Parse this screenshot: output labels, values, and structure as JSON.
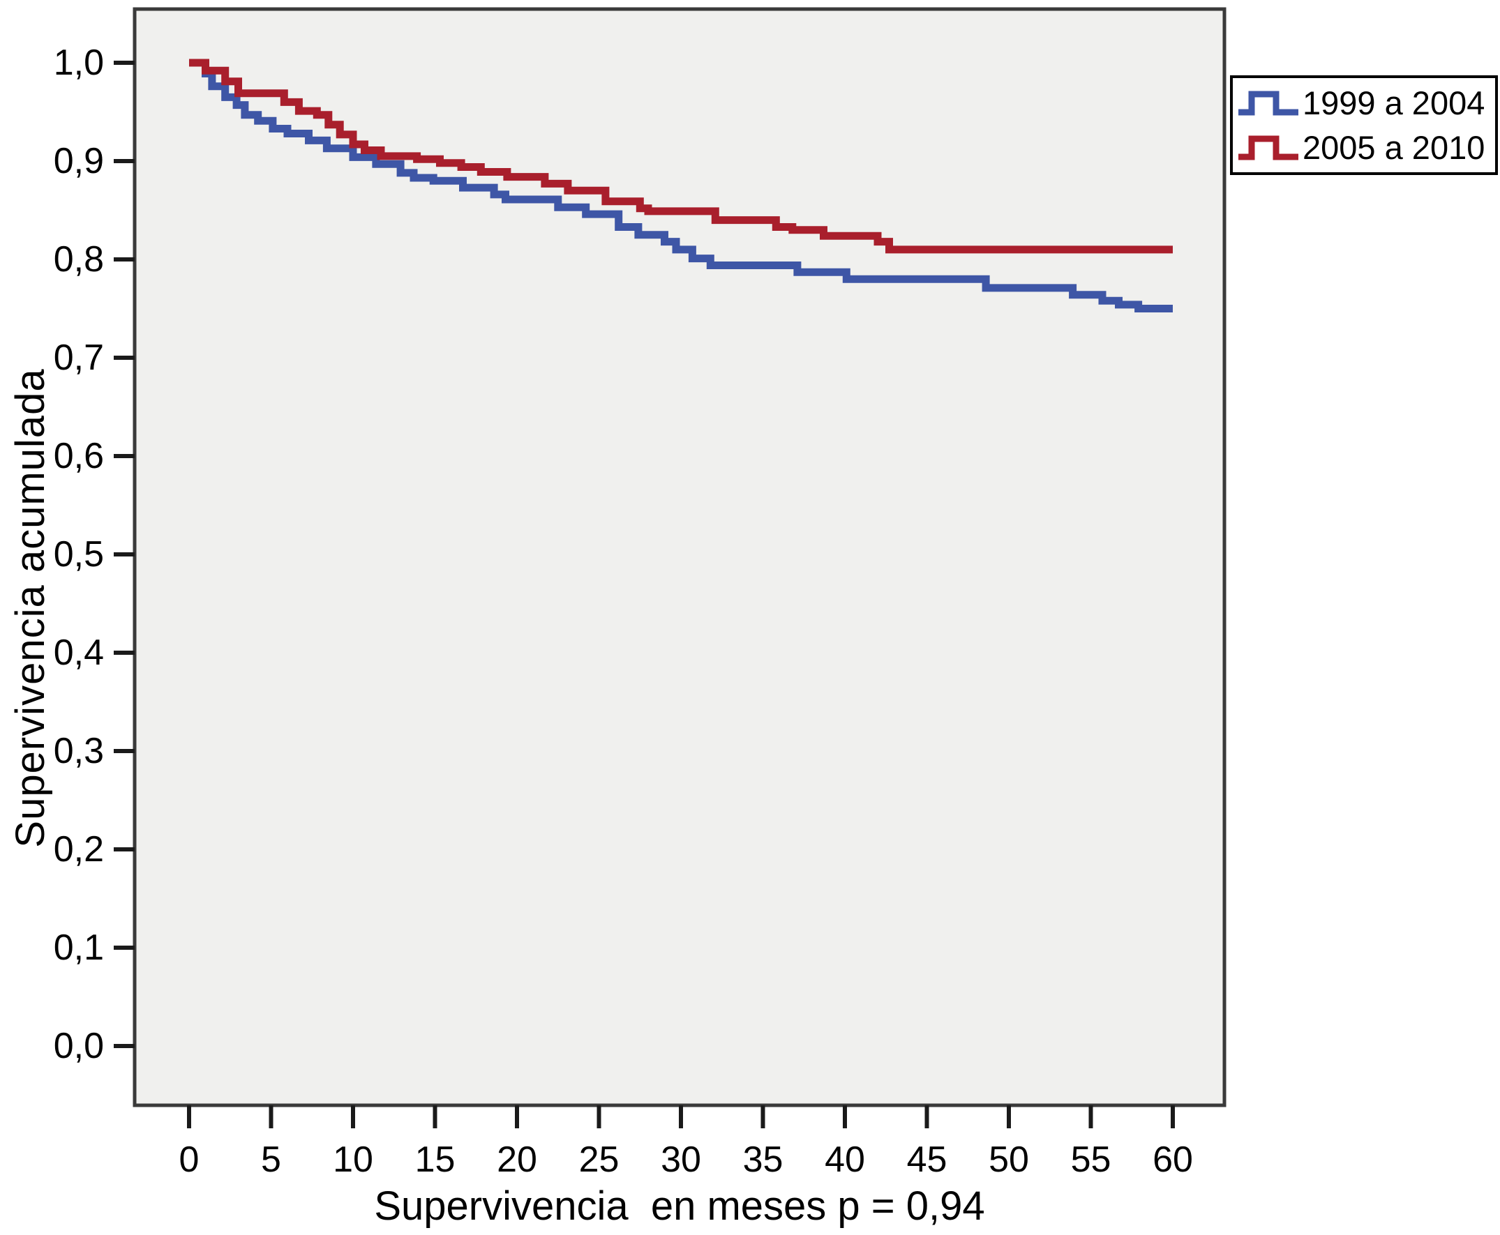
{
  "chart_data": {
    "type": "line",
    "subtype": "kaplan-meier-step-survival",
    "title": "",
    "xlabel": "Supervivencia  en meses p = 0,94",
    "ylabel": "Supervivencia acumulada",
    "p_value_label": "p = 0,94",
    "xlim": [
      0,
      60
    ],
    "ylim": [
      0.0,
      1.0
    ],
    "grid": false,
    "plot_bg": "#f0f0ee",
    "frame_color": "#3a3a3a",
    "tick_color": "#1a1a1a",
    "legend_position": "top-right-outside",
    "x_tick_values": [
      0,
      5,
      10,
      15,
      20,
      25,
      30,
      35,
      40,
      45,
      50,
      55,
      60
    ],
    "x_tick_labels": [
      "0",
      "5",
      "10",
      "15",
      "20",
      "25",
      "30",
      "35",
      "40",
      "45",
      "50",
      "55",
      "60"
    ],
    "y_tick_values": [
      1.0,
      0.9,
      0.8,
      0.7,
      0.6,
      0.5,
      0.4,
      0.3,
      0.2,
      0.1,
      0.0
    ],
    "y_tick_labels": [
      "1,0",
      "0,9",
      "0,8",
      "0,7",
      "0,6",
      "0,5",
      "0,4",
      "0,3",
      "0,2",
      "0,1",
      "0,0"
    ],
    "series": [
      {
        "name": "1999 a 2004",
        "color": "#3e56a6",
        "points": [
          [
            0,
            1.0
          ],
          [
            1.0,
            0.989
          ],
          [
            1.4,
            0.976
          ],
          [
            2.2,
            0.965
          ],
          [
            2.9,
            0.957
          ],
          [
            3.4,
            0.947
          ],
          [
            4.2,
            0.941
          ],
          [
            5.1,
            0.933
          ],
          [
            6.0,
            0.928
          ],
          [
            7.3,
            0.921
          ],
          [
            8.4,
            0.913
          ],
          [
            10.0,
            0.904
          ],
          [
            11.4,
            0.897
          ],
          [
            12.9,
            0.888
          ],
          [
            13.7,
            0.883
          ],
          [
            14.9,
            0.88
          ],
          [
            16.7,
            0.873
          ],
          [
            18.6,
            0.866
          ],
          [
            19.3,
            0.861
          ],
          [
            22.5,
            0.853
          ],
          [
            24.2,
            0.846
          ],
          [
            26.2,
            0.833
          ],
          [
            27.4,
            0.825
          ],
          [
            29.0,
            0.818
          ],
          [
            29.7,
            0.81
          ],
          [
            30.7,
            0.801
          ],
          [
            31.8,
            0.794
          ],
          [
            37.1,
            0.787
          ],
          [
            40.1,
            0.78
          ],
          [
            48.6,
            0.771
          ],
          [
            53.9,
            0.764
          ],
          [
            55.7,
            0.758
          ],
          [
            56.7,
            0.754
          ],
          [
            57.9,
            0.75
          ],
          [
            60,
            0.75
          ]
        ]
      },
      {
        "name": "2005 a 2010",
        "color": "#a91f2c",
        "points": [
          [
            0,
            1.0
          ],
          [
            1.0,
            0.992
          ],
          [
            2.2,
            0.981
          ],
          [
            3.0,
            0.969
          ],
          [
            5.8,
            0.96
          ],
          [
            6.7,
            0.951
          ],
          [
            7.8,
            0.947
          ],
          [
            8.5,
            0.937
          ],
          [
            9.2,
            0.927
          ],
          [
            10.0,
            0.917
          ],
          [
            10.7,
            0.911
          ],
          [
            11.7,
            0.905
          ],
          [
            13.9,
            0.902
          ],
          [
            15.3,
            0.898
          ],
          [
            16.6,
            0.894
          ],
          [
            17.8,
            0.889
          ],
          [
            19.4,
            0.884
          ],
          [
            21.7,
            0.877
          ],
          [
            23.1,
            0.87
          ],
          [
            25.4,
            0.859
          ],
          [
            27.5,
            0.852
          ],
          [
            28.0,
            0.849
          ],
          [
            32.1,
            0.84
          ],
          [
            35.8,
            0.833
          ],
          [
            36.8,
            0.83
          ],
          [
            38.7,
            0.824
          ],
          [
            42.0,
            0.818
          ],
          [
            42.7,
            0.81
          ],
          [
            60,
            0.81
          ]
        ]
      }
    ]
  }
}
